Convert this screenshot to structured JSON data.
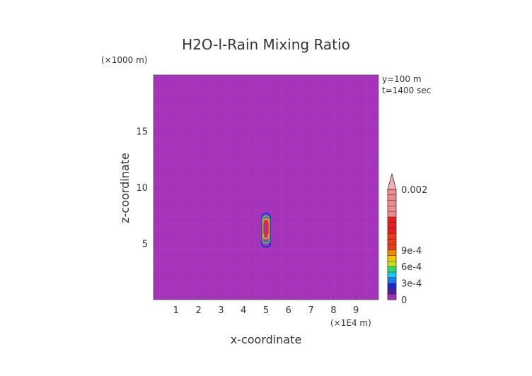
{
  "chart_data": {
    "type": "heatmap",
    "title": "H2O-l-Rain Mixing Ratio",
    "xlabel": "x-coordinate",
    "ylabel": "z-coordinate",
    "x_unit": "(×1E4 m)",
    "y_unit": "(×1000 m)",
    "annotations": [
      "y=100 m",
      "t=1400 sec"
    ],
    "xlim": [
      0,
      10
    ],
    "ylim": [
      0,
      20
    ],
    "x_ticks": [
      1,
      2,
      3,
      4,
      5,
      6,
      7,
      8,
      9
    ],
    "y_ticks": [
      5,
      10,
      15
    ],
    "background_value": 0,
    "background_color": "#a330b8",
    "feature": {
      "description_value": "rain plume",
      "center_x": 5.0,
      "bottom_z": 4.9,
      "top_z": 7.7,
      "half_width_x": 0.18,
      "contours": [
        {
          "level": 0.0002,
          "color": "#2233dd"
        },
        {
          "level": 0.0005,
          "color": "#33cc55"
        },
        {
          "level": 0.0008,
          "color": "#ff9900"
        },
        {
          "level": 0.0011,
          "color": "#ee2222"
        }
      ]
    },
    "colorbar": {
      "labels": [
        "0",
        "3e-4",
        "6e-4",
        "9e-4",
        "0.002"
      ],
      "label_values": [
        0,
        0.0003,
        0.0006,
        0.0009,
        0.002
      ],
      "segments": [
        {
          "color": "#a330b8",
          "from": 0,
          "to": 0.0001
        },
        {
          "color": "#4a1f9e",
          "from": 0.0001,
          "to": 0.0002
        },
        {
          "color": "#1b2ad0",
          "from": 0.0002,
          "to": 0.0003
        },
        {
          "color": "#1f7cf0",
          "from": 0.0003,
          "to": 0.0004
        },
        {
          "color": "#19c7ef",
          "from": 0.0004,
          "to": 0.0005
        },
        {
          "color": "#2fd86a",
          "from": 0.0005,
          "to": 0.0006
        },
        {
          "color": "#c8e21a",
          "from": 0.0006,
          "to": 0.0007
        },
        {
          "color": "#f5c400",
          "from": 0.0007,
          "to": 0.0008
        },
        {
          "color": "#f28a00",
          "from": 0.0008,
          "to": 0.0009
        },
        {
          "color": "#ee3b17",
          "from": 0.0009,
          "to": 0.0012
        },
        {
          "color": "#e91f1f",
          "from": 0.0012,
          "to": 0.0015
        },
        {
          "color": "#f08a8a",
          "from": 0.0015,
          "to": 0.002
        }
      ],
      "extend_color": "#f3b0b0"
    }
  }
}
